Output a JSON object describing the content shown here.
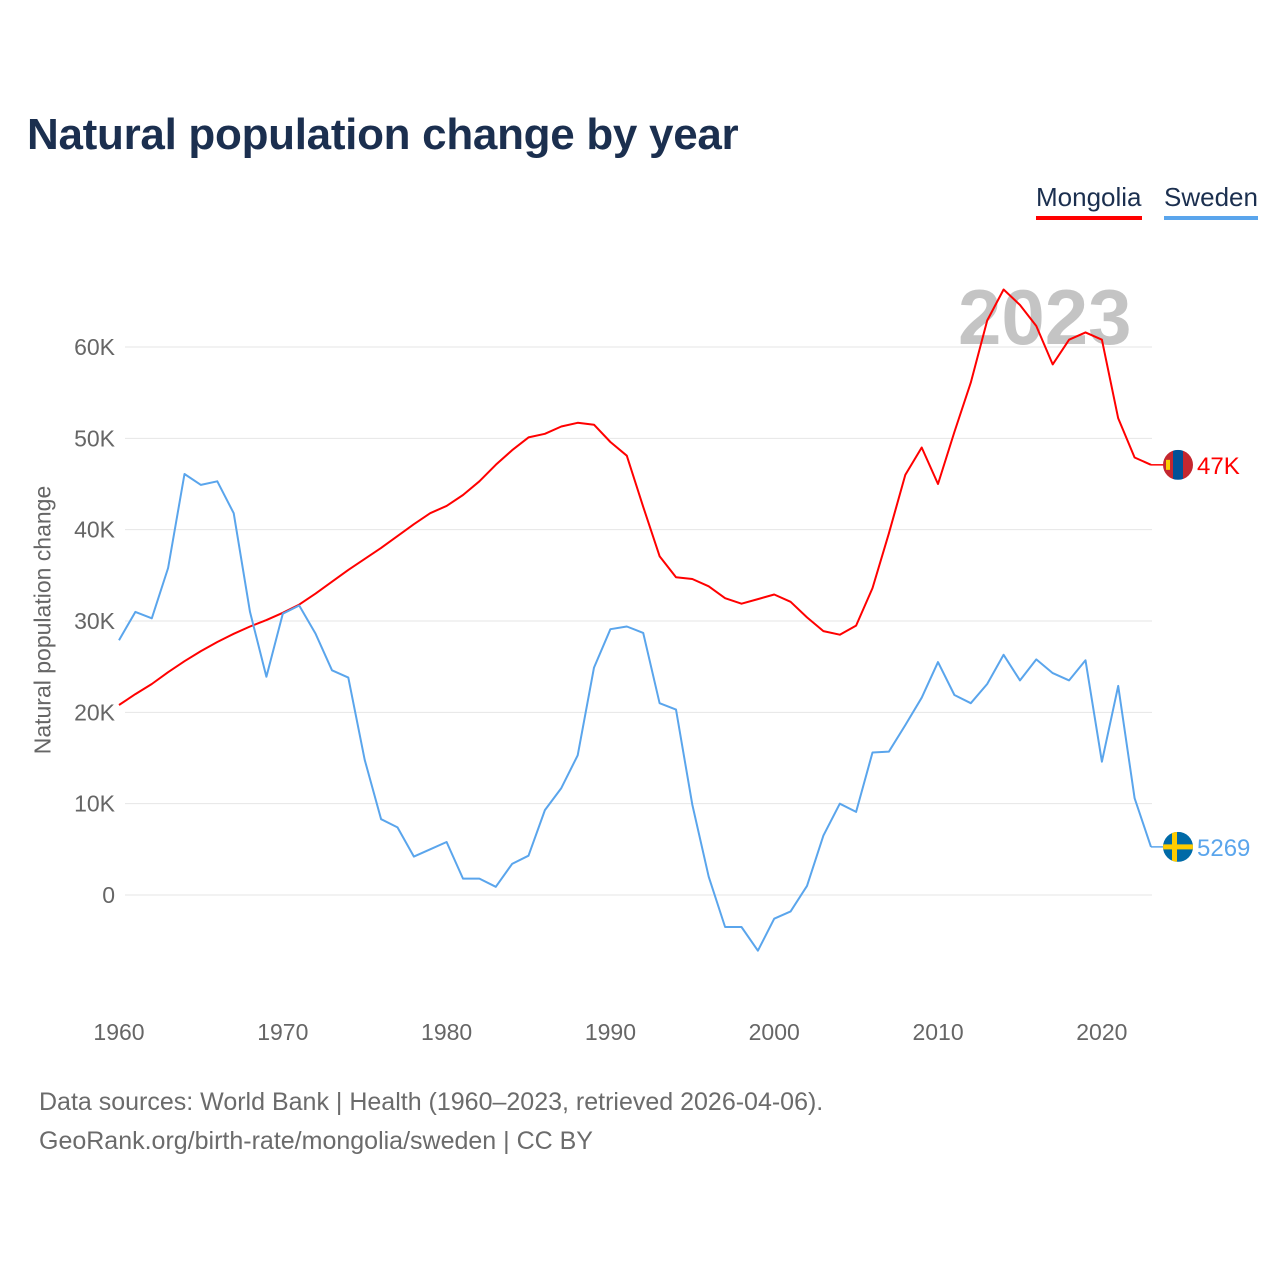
{
  "chart_data": {
    "type": "line",
    "title": "Natural population change by year",
    "ylabel": "Natural population change",
    "xlabel": "",
    "current_year_label": "2023",
    "xlim": [
      1960,
      2023
    ],
    "ylim": [
      -10000,
      70000
    ],
    "x_ticks": [
      1960,
      1970,
      1980,
      1990,
      2000,
      2010,
      2020
    ],
    "x_tick_labels": [
      "1960",
      "1970",
      "1980",
      "1990",
      "2000",
      "2010",
      "2020"
    ],
    "y_ticks": [
      0,
      10000,
      20000,
      30000,
      40000,
      50000,
      60000
    ],
    "y_tick_labels": [
      "0",
      "10K",
      "20K",
      "30K",
      "40K",
      "50K",
      "60K"
    ],
    "grid": true,
    "legend_position": "top-right",
    "x": [
      1960,
      1961,
      1962,
      1963,
      1964,
      1965,
      1966,
      1967,
      1968,
      1969,
      1970,
      1971,
      1972,
      1973,
      1974,
      1975,
      1976,
      1977,
      1978,
      1979,
      1980,
      1981,
      1982,
      1983,
      1984,
      1985,
      1986,
      1987,
      1988,
      1989,
      1990,
      1991,
      1992,
      1993,
      1994,
      1995,
      1996,
      1997,
      1998,
      1999,
      2000,
      2001,
      2002,
      2003,
      2004,
      2005,
      2006,
      2007,
      2008,
      2009,
      2010,
      2011,
      2012,
      2013,
      2014,
      2015,
      2016,
      2017,
      2018,
      2019,
      2020,
      2021,
      2022,
      2023
    ],
    "series": [
      {
        "name": "Mongolia",
        "color": "#ff0000",
        "end_label": "47K",
        "flag": "mongolia-flag",
        "values": [
          20800,
          22000,
          23100,
          24400,
          25600,
          26700,
          27700,
          28600,
          29400,
          30100,
          30900,
          31800,
          33000,
          34300,
          35600,
          36800,
          38000,
          39300,
          40600,
          41800,
          42600,
          43800,
          45300,
          47100,
          48700,
          50100,
          50500,
          51300,
          51700,
          51500,
          49600,
          48100,
          42500,
          37100,
          34800,
          34600,
          33800,
          32500,
          31900,
          32400,
          32900,
          32100,
          30400,
          28900,
          28500,
          29500,
          33600,
          39600,
          46000,
          49000,
          45000,
          50700,
          56100,
          62900,
          66300,
          64600,
          62300,
          58100,
          60800,
          61600,
          60800,
          52200,
          47900,
          47100
        ]
      },
      {
        "name": "Sweden",
        "color": "#5aa5ec",
        "end_label": "5269",
        "flag": "sweden-flag",
        "values": [
          27900,
          31000,
          30300,
          35800,
          46100,
          44900,
          45300,
          41800,
          31000,
          23900,
          30800,
          31700,
          28600,
          24600,
          23800,
          14800,
          8300,
          7400,
          4200,
          5000,
          5800,
          1800,
          1800,
          900,
          3400,
          4300,
          9300,
          11700,
          15300,
          24900,
          29100,
          29400,
          28700,
          21000,
          20300,
          9900,
          2000,
          -3500,
          -3500,
          -6100,
          -2600,
          -1800,
          1000,
          6500,
          10000,
          9100,
          15600,
          15700,
          18600,
          21600,
          25500,
          21900,
          21000,
          23100,
          26300,
          23500,
          25800,
          24300,
          23500,
          25700,
          14600,
          22900,
          10600,
          5269
        ]
      }
    ]
  },
  "footer": {
    "sources": "Data sources: World Bank | Health (1960–2023, retrieved 2026-04-06).",
    "credit": "GeoRank.org/birth-rate/mongolia/sweden | CC BY"
  }
}
